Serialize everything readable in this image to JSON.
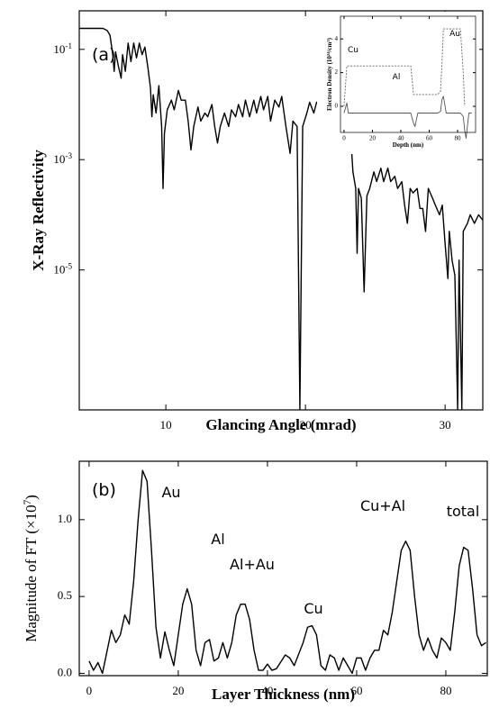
{
  "chart_data": [
    {
      "type": "line",
      "panel_label": "(a)",
      "xlabel": "Glancing Angle (mrad)",
      "ylabel": "X-Ray Reflectivity",
      "xlim": [
        3.8,
        32.7
      ],
      "xticks": [
        10,
        20,
        30
      ],
      "ylim": [
        2.9e-08,
        0.5
      ],
      "y_scale": "log",
      "yticks": [
        {
          "value": 0.1,
          "base": "10",
          "exponent": "-1"
        },
        {
          "value": 0.001,
          "base": "10",
          "exponent": "-3"
        },
        {
          "value": 1e-05,
          "base": "10",
          "exponent": "-5"
        }
      ],
      "x": [
        3.8,
        5.5,
        5.8,
        6.0,
        6.2,
        6.3,
        6.4,
        6.6,
        6.8,
        6.9,
        7.1,
        7.3,
        7.5,
        7.7,
        7.9,
        8.1,
        8.3,
        8.5,
        8.7,
        8.9,
        9.0,
        9.1,
        9.3,
        9.5,
        9.7,
        9.8,
        9.9,
        10.1,
        10.4,
        10.6,
        10.9,
        11.1,
        11.4,
        11.6,
        11.8,
        12.0,
        12.3,
        12.5,
        12.8,
        13.0,
        13.3,
        13.5,
        13.7,
        13.9,
        14.2,
        14.5,
        14.7,
        15.0,
        15.2,
        15.5,
        15.7,
        16.0,
        16.3,
        16.5,
        16.8,
        17.0,
        17.3,
        17.5,
        17.8,
        18.1,
        18.3,
        18.6,
        18.9,
        19.1,
        19.4,
        19.6,
        19.8,
        20.1,
        20.3,
        20.6,
        20.8,
        21.1,
        21.3,
        21.6,
        21.8,
        22.0,
        22.3,
        22.6,
        22.8,
        23.0,
        23.2,
        23.4,
        23.6,
        23.7,
        23.8,
        24.0,
        24.2,
        24.4,
        24.6,
        24.9,
        25.1,
        25.4,
        25.6,
        25.9,
        26.1,
        26.4,
        26.6,
        26.9,
        27.1,
        27.3,
        27.5,
        27.7,
        28.0,
        28.2,
        28.4,
        28.6,
        28.8,
        29.1,
        29.3,
        29.6,
        29.8,
        30.0,
        30.2,
        30.3,
        30.5,
        30.7,
        30.9,
        31.0,
        31.2,
        31.3,
        31.6,
        31.8,
        32.1,
        32.4,
        32.7
      ],
      "series": [
        {
          "color": "#000000",
          "values": [
            0.24,
            0.24,
            0.22,
            0.18,
            0.08,
            0.04,
            0.09,
            0.05,
            0.03,
            0.08,
            0.04,
            0.13,
            0.06,
            0.13,
            0.07,
            0.13,
            0.08,
            0.11,
            0.05,
            0.02,
            0.006,
            0.015,
            0.007,
            0.022,
            0.004,
            0.0003,
            0.003,
            0.008,
            0.012,
            0.008,
            0.018,
            0.012,
            0.012,
            0.005,
            0.0015,
            0.004,
            0.009,
            0.005,
            0.007,
            0.006,
            0.01,
            0.004,
            0.002,
            0.004,
            0.007,
            0.004,
            0.008,
            0.006,
            0.01,
            0.006,
            0.012,
            0.006,
            0.012,
            0.007,
            0.014,
            0.008,
            0.014,
            0.005,
            0.012,
            0.009,
            0.014,
            0.004,
            0.0013,
            0.005,
            0.004,
            3e-08,
            0.004,
            0.007,
            0.011,
            0.007,
            0.011,
            0.009,
            0.013,
            0.009,
            0.005,
            0.011,
            0.007,
            0.013,
            0.005,
            0.011,
            0.004,
            0.0006,
            0.0003,
            2e-05,
            0.0003,
            0.0002,
            4e-06,
            0.00022,
            0.0003,
            0.0006,
            0.0004,
            0.0007,
            0.0004,
            0.0007,
            0.0004,
            0.0005,
            0.0003,
            0.0004,
            0.00015,
            7e-05,
            0.0003,
            0.00025,
            0.0003,
            0.00013,
            0.00013,
            5e-05,
            0.0003,
            0.0002,
            0.00015,
            0.0001,
            0.00015,
            3e-05,
            7e-06,
            5e-05,
            1.5e-05,
            8e-06,
            3e-08,
            1.5e-05,
            3e-08,
            5e-05,
            7e-05,
            0.0001,
            7e-05,
            0.0001,
            8e-05
          ]
        }
      ]
    },
    {
      "type": "line",
      "xlabel": "Depth (nm)",
      "ylabel_parts": [
        "Electron Density (10",
        "24",
        "/cm",
        "3",
        ")"
      ],
      "xlim": [
        -2.5,
        92.7
      ],
      "xticks": [
        0,
        20,
        40,
        60,
        80
      ],
      "ylim": [
        -1.55,
        5.35
      ],
      "yticks": [
        0,
        2,
        4
      ],
      "annotations": [
        "Cu",
        "Al",
        "Au"
      ],
      "x": [
        0,
        2,
        3,
        47,
        49,
        50,
        52,
        66,
        68,
        69,
        70,
        72,
        82,
        84,
        85,
        86,
        88,
        90
      ],
      "series": [
        {
          "color": "#666666",
          "line_style": "dashed",
          "values": [
            0,
            2.4,
            2.4,
            2.4,
            0.7,
            0.7,
            0.7,
            0.7,
            0.9,
            2.5,
            4.6,
            4.6,
            4.6,
            2,
            0,
            null,
            null,
            null
          ]
        },
        {
          "color": "#555555",
          "line_style": "solid",
          "values": [
            -0.4,
            0.2,
            -0.4,
            -0.4,
            -1.0,
            -1.2,
            -0.4,
            -0.4,
            -0.3,
            0.4,
            0.6,
            -0.4,
            -0.4,
            -0.6,
            -1.4,
            -1.9,
            -0.4,
            -0.4
          ]
        }
      ]
    },
    {
      "type": "line",
      "panel_label": "(b)",
      "xlabel": "Layer Thickness (nm)",
      "ylabel_parts": [
        "Magnitude of FT (×10",
        "7",
        ")"
      ],
      "xlim": [
        -2.2,
        89.3
      ],
      "xticks": [
        0,
        20,
        40,
        60,
        80
      ],
      "ylim": [
        -0.015,
        1.38
      ],
      "yticks": [
        {
          "value": 0,
          "label": "0.0"
        },
        0.5,
        {
          "value": 1,
          "label": "1.0"
        }
      ],
      "annotations": [
        "Au",
        "Al",
        "Al+Au",
        "Cu",
        "Cu+Al",
        "total"
      ],
      "x": [
        0,
        1,
        2,
        3,
        5,
        6,
        7,
        8,
        9,
        10,
        11,
        12,
        13,
        14,
        15,
        16,
        17,
        18,
        19,
        20,
        21,
        22,
        23,
        24,
        25,
        26,
        27,
        28,
        29,
        30,
        31,
        32,
        33,
        34,
        35,
        36,
        37,
        38,
        39,
        40,
        41,
        42,
        44,
        45,
        46,
        48,
        49,
        50,
        51,
        52,
        53,
        54,
        55,
        56,
        57,
        58,
        59,
        60,
        61,
        62,
        63,
        64,
        65,
        66,
        67,
        68,
        69,
        70,
        71,
        72,
        73,
        74,
        75,
        76,
        77,
        78,
        79,
        80,
        81,
        82,
        83,
        84,
        85,
        86,
        87,
        88,
        89
      ],
      "series": [
        {
          "color": "#000000",
          "values": [
            0.08,
            0.02,
            0.07,
            0.0,
            0.28,
            0.2,
            0.25,
            0.38,
            0.32,
            0.6,
            1.0,
            1.32,
            1.25,
            0.8,
            0.3,
            0.1,
            0.27,
            0.15,
            0.05,
            0.25,
            0.45,
            0.55,
            0.45,
            0.15,
            0.05,
            0.2,
            0.22,
            0.08,
            0.1,
            0.2,
            0.1,
            0.2,
            0.38,
            0.45,
            0.45,
            0.35,
            0.15,
            0.02,
            0.02,
            0.06,
            0.02,
            0.03,
            0.12,
            0.1,
            0.05,
            0.2,
            0.3,
            0.31,
            0.25,
            0.05,
            0.02,
            0.12,
            0.1,
            0.02,
            0.1,
            0.05,
            0.0,
            0.1,
            0.1,
            0.02,
            0.1,
            0.15,
            0.15,
            0.28,
            0.25,
            0.4,
            0.6,
            0.8,
            0.86,
            0.8,
            0.5,
            0.25,
            0.15,
            0.23,
            0.15,
            0.1,
            0.23,
            0.2,
            0.15,
            0.4,
            0.7,
            0.82,
            0.8,
            0.55,
            0.25,
            0.18,
            0.2
          ]
        }
      ]
    }
  ]
}
